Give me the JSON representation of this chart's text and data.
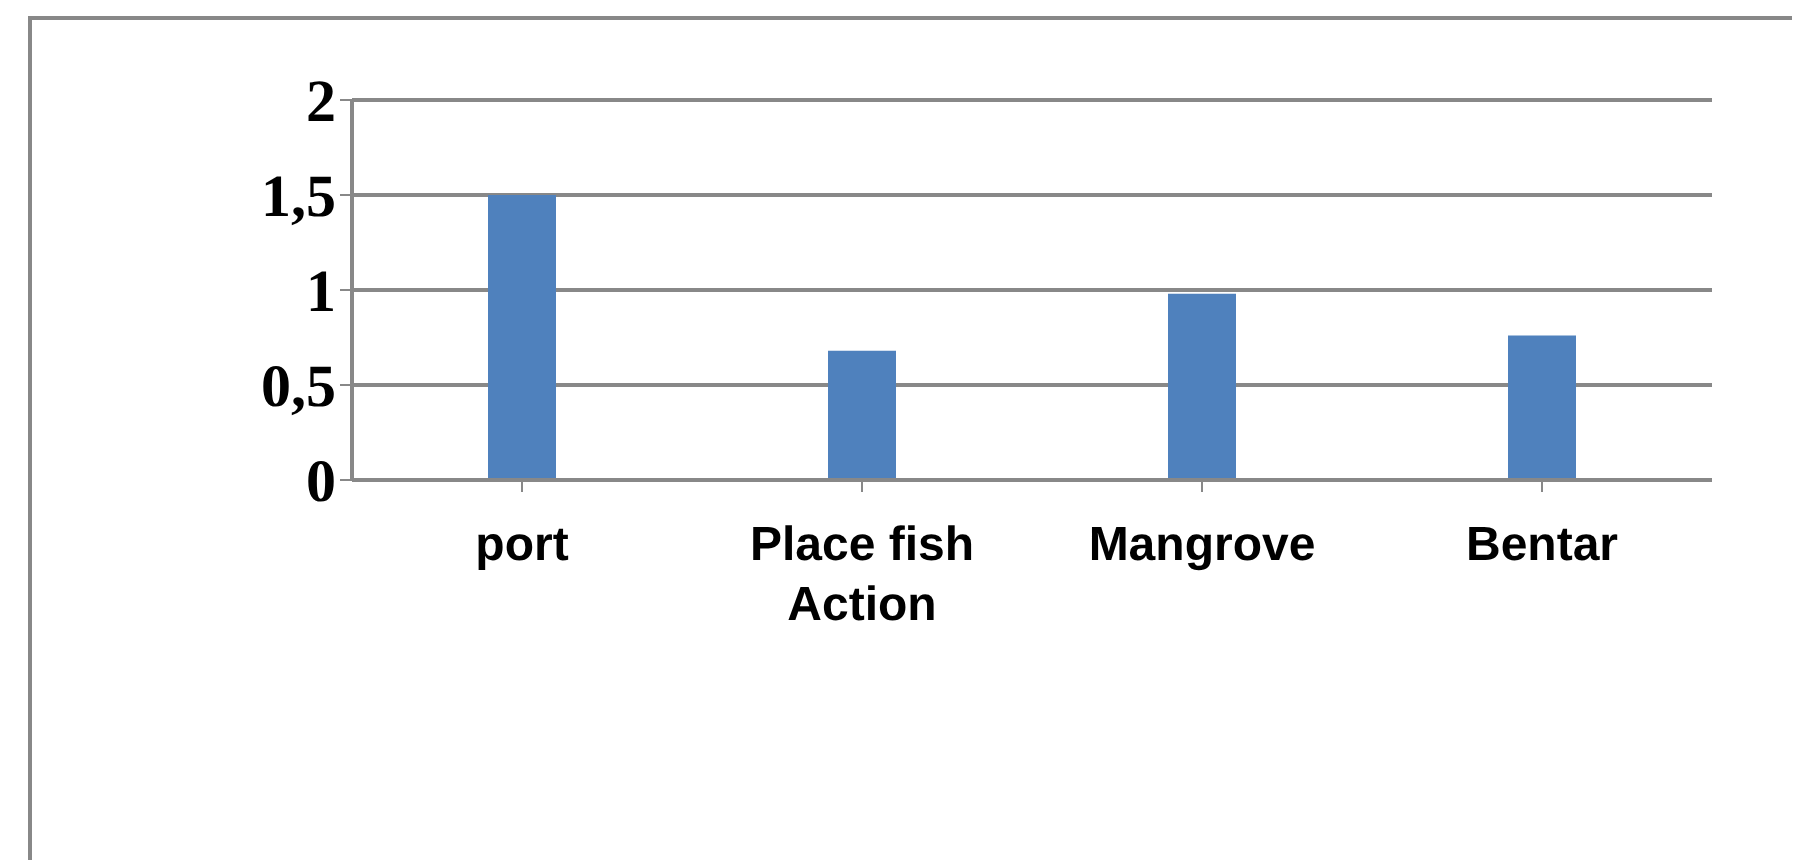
{
  "chart_data": {
    "type": "bar",
    "categories": [
      "port",
      "Place fish Action",
      "Mangrove",
      "Bentar"
    ],
    "values": [
      1.5,
      0.68,
      0.98,
      0.76
    ],
    "color": "#4f81bd",
    "ylim": [
      0,
      2
    ],
    "yticks": [
      0,
      {
        "value": 0.5,
        "label": "0,5"
      },
      1,
      {
        "value": 1.5,
        "label": "1,5"
      },
      2
    ],
    "grid": "y"
  }
}
